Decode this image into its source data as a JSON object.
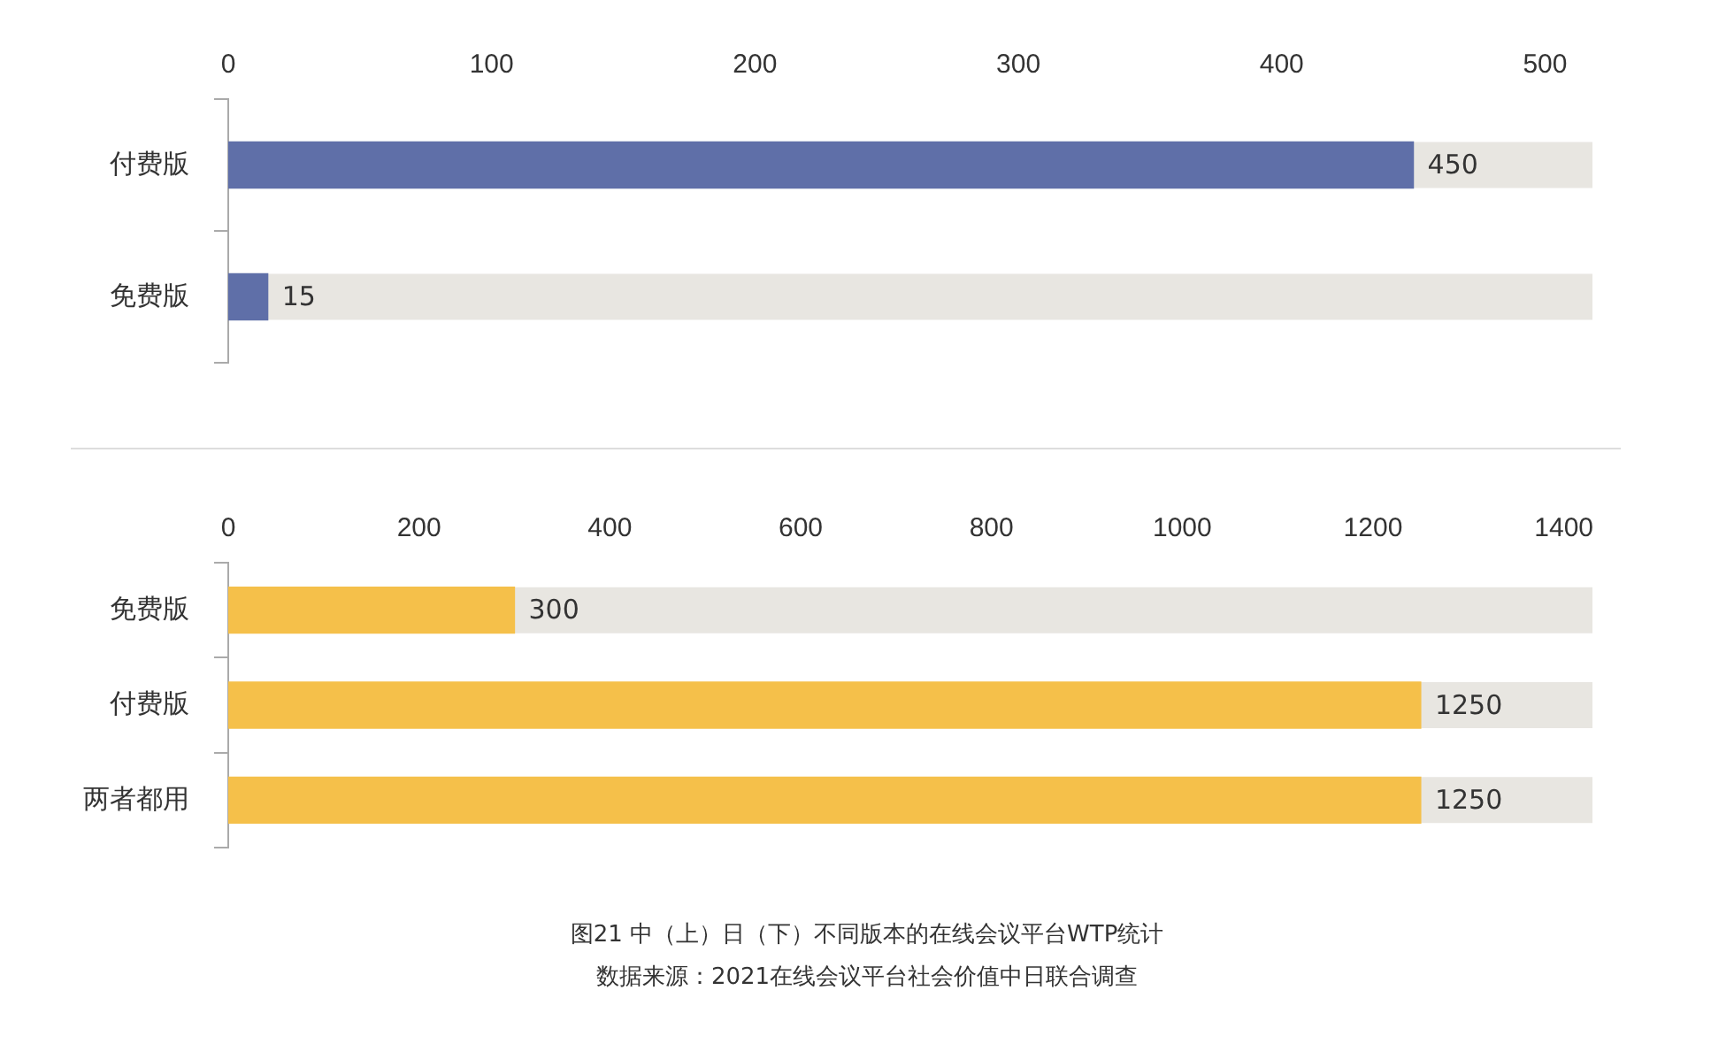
{
  "chart_data": [
    {
      "type": "bar",
      "orientation": "horizontal",
      "categories": [
        "付费版",
        "免费版"
      ],
      "values": [
        450,
        15
      ],
      "color": "#5f6fa8",
      "xlim": [
        0,
        518
      ],
      "xticks": [
        0,
        100,
        200,
        300,
        400,
        500
      ],
      "data_labels": true,
      "grid": false,
      "legend": false
    },
    {
      "type": "bar",
      "orientation": "horizontal",
      "categories": [
        "免费版",
        "付费版",
        "两者都用"
      ],
      "values": [
        300,
        1250,
        1250
      ],
      "color": "#f5c04a",
      "xlim": [
        0,
        1430
      ],
      "xticks": [
        0,
        200,
        400,
        600,
        800,
        1000,
        1200,
        1400
      ],
      "data_labels": true,
      "grid": false,
      "legend": false,
      "title": "图21 中（上）日（下）不同版本的在线会议平台WTP统计",
      "annotations": [
        "数据来源：2021在线会议平台社会价值中日联合调查"
      ]
    }
  ]
}
